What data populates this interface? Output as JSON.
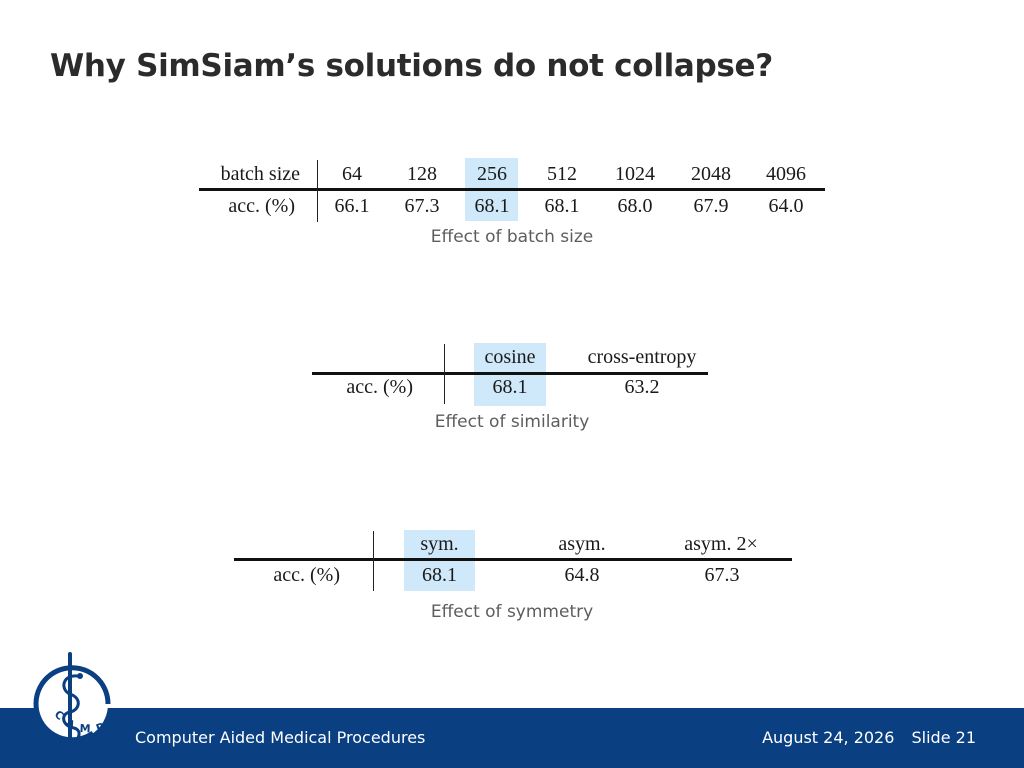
{
  "slide": {
    "title": "Why SimSiam’s solutions do not collapse?"
  },
  "tables": {
    "batch": {
      "header_label": "batch size",
      "row_label": "acc. (%)",
      "columns": [
        "64",
        "128",
        "256",
        "512",
        "1024",
        "2048",
        "4096"
      ],
      "values": [
        "66.1",
        "67.3",
        "68.1",
        "68.1",
        "68.0",
        "67.9",
        "64.0"
      ],
      "highlighted_column": "256",
      "caption": "Effect of batch size"
    },
    "similarity": {
      "row_label": "acc. (%)",
      "columns": [
        "cosine",
        "cross-entropy"
      ],
      "values": [
        "68.1",
        "63.2"
      ],
      "highlighted_column": "cosine",
      "caption": "Effect of similarity"
    },
    "symmetry": {
      "row_label": "acc. (%)",
      "columns": [
        "sym.",
        "asym.",
        "asym. 2×"
      ],
      "values": [
        "68.1",
        "64.8",
        "67.3"
      ],
      "highlighted_column": "sym.",
      "caption": "Effect of symmetry"
    }
  },
  "footer": {
    "institution": "Computer Aided Medical Procedures",
    "date": "August 24, 2026",
    "slide_number": "Slide 21"
  },
  "logo": {
    "text": "CAMP",
    "icon": "rod-of-asclepius-icon"
  },
  "colors": {
    "highlight": "#cfe9fa",
    "footer_bar": "#0a3f82",
    "title_text": "#2b2b2b",
    "caption_text": "#5d5d5d"
  }
}
